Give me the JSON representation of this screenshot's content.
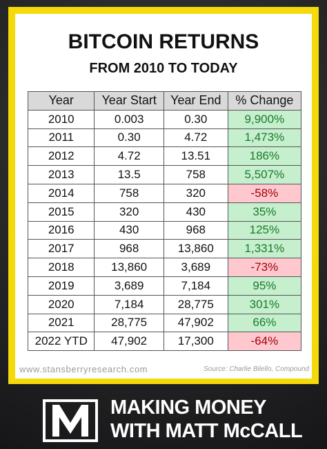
{
  "header": {
    "title": "BITCOIN RETURNS",
    "subtitle": "FROM 2010 TO TODAY"
  },
  "table": {
    "columns": [
      "Year",
      "Year Start",
      "Year End",
      "% Change"
    ],
    "rows": [
      [
        "2010",
        "0.003",
        "0.30",
        "9,900%"
      ],
      [
        "2011",
        "0.30",
        "4.72",
        "1,473%"
      ],
      [
        "2012",
        "4.72",
        "13.51",
        "186%"
      ],
      [
        "2013",
        "13.5",
        "758",
        "5,507%"
      ],
      [
        "2014",
        "758",
        "320",
        "-58%"
      ],
      [
        "2015",
        "320",
        "430",
        "35%"
      ],
      [
        "2016",
        "430",
        "968",
        "125%"
      ],
      [
        "2017",
        "968",
        "13,860",
        "1,331%"
      ],
      [
        "2018",
        "13,860",
        "3,689",
        "-73%"
      ],
      [
        "2019",
        "3,689",
        "7,184",
        "95%"
      ],
      [
        "2020",
        "7,184",
        "28,775",
        "301%"
      ],
      [
        "2021",
        "28,775",
        "47,902",
        "66%"
      ],
      [
        "2022 YTD",
        "47,902",
        "17,300",
        "-64%"
      ]
    ]
  },
  "footer": {
    "website": "www.stansberryresearch.com",
    "source": "Source: Charlie Bilello, Compound"
  },
  "brand": {
    "line1": "MAKING MONEY",
    "line2": "WITH MATT McCALL"
  }
}
